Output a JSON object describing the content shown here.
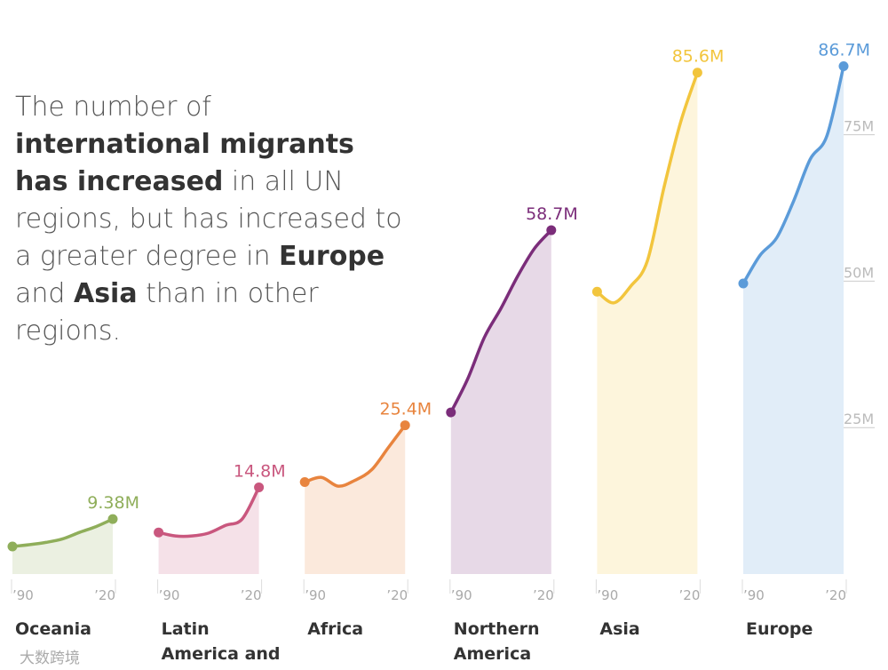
{
  "chart_data": {
    "type": "line",
    "text": [
      {
        "text": "The number of ",
        "bold": false
      },
      {
        "text": "international migrants has increased",
        "bold": true
      },
      {
        "text": " in all UN regions, but has increased to a greater degree in ",
        "bold": false
      },
      {
        "text": "Europe",
        "bold": true
      },
      {
        "text": " and ",
        "bold": false
      },
      {
        "text": "Asia",
        "bold": true
      },
      {
        "text": " than in other regions.",
        "bold": false
      }
    ],
    "x": [
      1990,
      1995,
      2000,
      2005,
      2010,
      2015,
      2020
    ],
    "xlim": [
      1990,
      2020
    ],
    "xticks": [
      {
        "value": 1990,
        "label": "’90"
      },
      {
        "value": 2020,
        "label": "’20"
      }
    ],
    "ylim": [
      0,
      98
    ],
    "yticks": [
      {
        "value": 25,
        "label": "25M"
      },
      {
        "value": 50,
        "label": "50M"
      },
      {
        "value": 75,
        "label": "75M"
      }
    ],
    "series": [
      {
        "name": "Oceania",
        "color": "#8fae5a",
        "values": [
          4.7,
          5.0,
          5.4,
          6.0,
          7.1,
          8.1,
          9.38
        ],
        "value_labels": [
          null,
          null,
          null,
          null,
          null,
          null,
          "9.38M"
        ]
      },
      {
        "name": "Latin America and",
        "color": "#c9577e",
        "values": [
          7.1,
          6.5,
          6.5,
          7.0,
          8.3,
          9.4,
          14.8
        ],
        "value_labels": [
          null,
          null,
          null,
          null,
          null,
          null,
          "14.8M"
        ]
      },
      {
        "name": "Africa",
        "color": "#e8843e",
        "values": [
          15.7,
          16.5,
          15.0,
          16.0,
          17.8,
          21.6,
          25.4
        ],
        "value_labels": [
          null,
          null,
          null,
          null,
          null,
          null,
          "25.4M"
        ]
      },
      {
        "name": "Northern America",
        "color": "#7b2d7a",
        "values": [
          27.6,
          33.3,
          40.4,
          45.4,
          50.9,
          55.6,
          58.7
        ],
        "value_labels": [
          null,
          null,
          null,
          null,
          null,
          null,
          "58.7M"
        ]
      },
      {
        "name": "Asia",
        "color": "#f2c53d",
        "values": [
          48.2,
          46.3,
          49.1,
          53.4,
          66.0,
          77.2,
          85.6
        ],
        "value_labels": [
          null,
          null,
          null,
          null,
          null,
          null,
          "85.6M"
        ]
      },
      {
        "name": "Europe",
        "color": "#5b9bd9",
        "values": [
          49.6,
          54.4,
          57.4,
          63.6,
          70.8,
          74.8,
          86.7
        ],
        "value_labels": [
          null,
          null,
          null,
          null,
          null,
          null,
          "86.7M"
        ]
      }
    ],
    "watermark": "大数跨境"
  }
}
